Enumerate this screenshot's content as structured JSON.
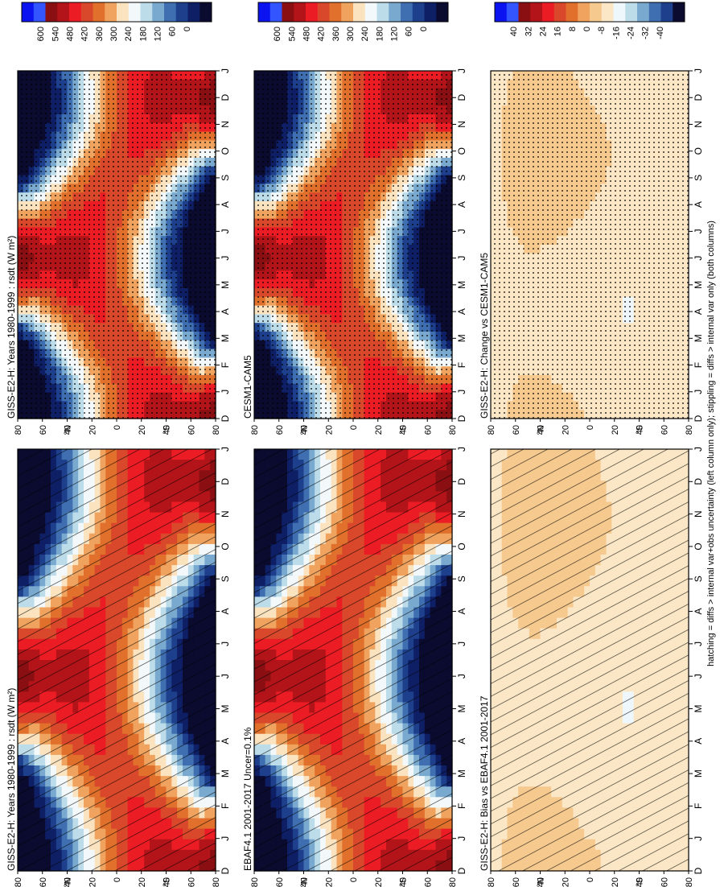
{
  "figure": {
    "footnote": "hatching = diffs > internal var+obs uncertainty (left column only); stippling = diffs > internal var only (both columns)"
  },
  "chart_data": [
    {
      "type": "heatmap",
      "title": "GISS-E2-H: Years 1980-1999 : rsdt (W m²)",
      "xlabel": "",
      "ylabel": "",
      "x": [
        "D",
        "J",
        "F",
        "M",
        "A",
        "M",
        "J",
        "J",
        "A",
        "S",
        "O",
        "N",
        "D",
        "J"
      ],
      "y_ticks": [
        "80",
        "60",
        "40",
        "20",
        "0",
        "20",
        "40",
        "60",
        "80"
      ],
      "y_unit_labels": [
        "°N",
        "°S"
      ],
      "colorbar": {
        "ticks": [
          "600",
          "540",
          "480",
          "420",
          "360",
          "300",
          "240",
          "180",
          "120",
          "60",
          "0"
        ]
      },
      "overlay": "hatching",
      "scale": "absolute"
    },
    {
      "type": "heatmap",
      "title": "GISS-E2-H: Years 1980-1999 : rsdt (W m²)",
      "xlabel": "",
      "ylabel": "",
      "x": [
        "D",
        "J",
        "F",
        "M",
        "A",
        "M",
        "J",
        "J",
        "A",
        "S",
        "O",
        "N",
        "D",
        "J"
      ],
      "y_ticks": [
        "80",
        "60",
        "40",
        "20",
        "0",
        "20",
        "40",
        "60",
        "80"
      ],
      "y_unit_labels": [
        "°N",
        "°S"
      ],
      "colorbar": {
        "ticks": [
          "600",
          "540",
          "480",
          "420",
          "360",
          "300",
          "240",
          "180",
          "120",
          "60",
          "0"
        ]
      },
      "overlay": "stippling",
      "scale": "absolute"
    },
    {
      "type": "heatmap",
      "title": "EBAF4.1 2001-2017 Uncer=0.1%",
      "xlabel": "",
      "ylabel": "",
      "x": [
        "D",
        "J",
        "F",
        "M",
        "A",
        "M",
        "J",
        "J",
        "A",
        "S",
        "O",
        "N",
        "D",
        "J"
      ],
      "y_ticks": [
        "80",
        "60",
        "40",
        "20",
        "0",
        "20",
        "40",
        "60",
        "80"
      ],
      "y_unit_labels": [
        "°N",
        "°S"
      ],
      "colorbar": {
        "ticks": [
          "600",
          "540",
          "480",
          "420",
          "360",
          "300",
          "240",
          "180",
          "120",
          "60",
          "0"
        ]
      },
      "overlay": "hatching",
      "scale": "absolute"
    },
    {
      "type": "heatmap",
      "title": "CESM1-CAM5",
      "xlabel": "",
      "ylabel": "",
      "x": [
        "D",
        "J",
        "F",
        "M",
        "A",
        "M",
        "J",
        "J",
        "A",
        "S",
        "O",
        "N",
        "D",
        "J"
      ],
      "y_ticks": [
        "80",
        "60",
        "40",
        "20",
        "0",
        "20",
        "40",
        "60",
        "80"
      ],
      "y_unit_labels": [
        "°N",
        "°S"
      ],
      "colorbar": {
        "ticks": [
          "600",
          "540",
          "480",
          "420",
          "360",
          "300",
          "240",
          "180",
          "120",
          "60",
          "0"
        ]
      },
      "overlay": "stippling",
      "scale": "absolute"
    },
    {
      "type": "heatmap",
      "title": "GISS-E2-H: Bias vs EBAF4.1 2001-2017",
      "xlabel": "",
      "ylabel": "",
      "x": [
        "D",
        "J",
        "F",
        "M",
        "A",
        "M",
        "J",
        "J",
        "A",
        "S",
        "O",
        "N",
        "D",
        "J"
      ],
      "y_ticks": [
        "80",
        "60",
        "40",
        "20",
        "0",
        "20",
        "40",
        "60",
        "80"
      ],
      "y_unit_labels": [
        "°N",
        "°S"
      ],
      "colorbar": {
        "ticks": [
          "40",
          "32",
          "24",
          "16",
          "8",
          "0",
          "-8",
          "-16",
          "-24",
          "-32",
          "-40"
        ]
      },
      "overlay": "hatching",
      "scale": "diff",
      "approx_values_by_latitude_band": {
        "north_pole": 4,
        "north_mid": 6,
        "equator": 8,
        "south_mid": 10,
        "south_pole": 6
      }
    },
    {
      "type": "heatmap",
      "title": "GISS-E2-H: Change vs CESM1-CAM5",
      "xlabel": "",
      "ylabel": "",
      "x": [
        "D",
        "J",
        "F",
        "M",
        "A",
        "M",
        "J",
        "J",
        "A",
        "S",
        "O",
        "N",
        "D",
        "J"
      ],
      "y_ticks": [
        "80",
        "60",
        "40",
        "20",
        "0",
        "20",
        "40",
        "60",
        "80"
      ],
      "y_unit_labels": [
        "°N",
        "°S"
      ],
      "colorbar": {
        "ticks": [
          "40",
          "32",
          "24",
          "16",
          "8",
          "0",
          "-8",
          "-16",
          "-24",
          "-32",
          "-40"
        ]
      },
      "overlay": "stippling",
      "scale": "diff",
      "approx_values_by_latitude_band": {
        "north_pole": 3,
        "north_mid": 5,
        "equator": 7,
        "south_mid": 9,
        "south_pole": 5
      }
    }
  ],
  "palettes": {
    "absolute": [
      "#0b0b30",
      "#0e1f66",
      "#1d3f8c",
      "#3f6fb0",
      "#7aa9cf",
      "#bcdcea",
      "#f3f9fb",
      "#fbe3c0",
      "#f0a35e",
      "#e0702b",
      "#d9482b",
      "#ec1c24",
      "#b31419",
      "#8a0f12",
      "#3355ff",
      "#0b14f0"
    ],
    "diff": [
      "#0b0b30",
      "#1d3f8c",
      "#3f6fb0",
      "#7aa9cf",
      "#bcdcea",
      "#eef7fb",
      "#fbe7c6",
      "#f6c98f",
      "#f0a35e",
      "#e0702b",
      "#d9482b",
      "#ec1c24",
      "#b31419",
      "#8a0f12",
      "#3355ff",
      "#0b14f0"
    ]
  }
}
